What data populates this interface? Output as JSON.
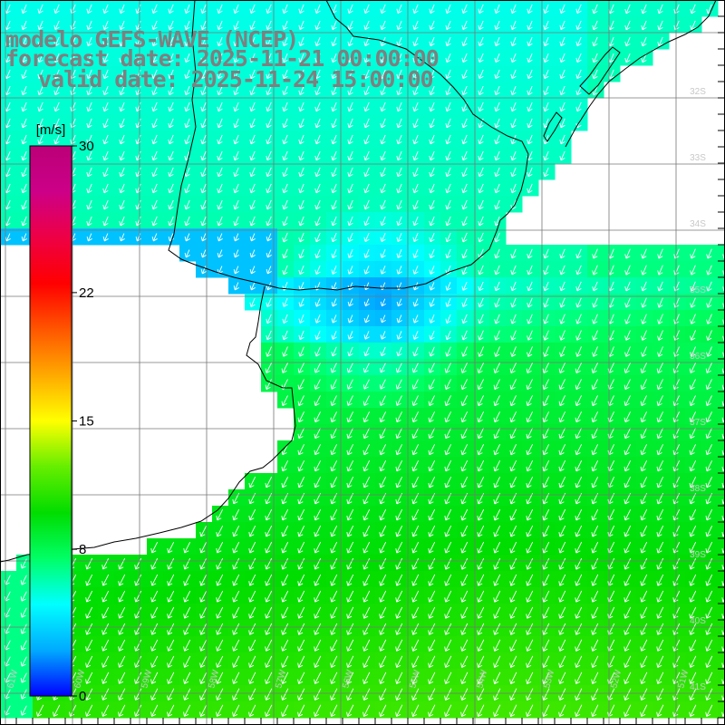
{
  "header": {
    "line1": "modelo GEFS-WAVE (NCEP)",
    "line2": "forecast date: 2025-11-21 00:00:00",
    "line3": "valid date: 2025-11-24 15:00:00"
  },
  "colorbar": {
    "unit": "[m/s]",
    "range": [
      0,
      30
    ],
    "ticks": [
      {
        "value": 30,
        "label": "30"
      },
      {
        "value": 22,
        "label": "22"
      },
      {
        "value": 15,
        "label": "15"
      },
      {
        "value": 8,
        "label": "8"
      },
      {
        "value": 0,
        "label": "0"
      }
    ],
    "stops": [
      "#0000ff",
      "#00aaff",
      "#00ffff",
      "#00ff66",
      "#00dd00",
      "#66ee00",
      "#ffff00",
      "#ffaa00",
      "#ff5500",
      "#ff0000",
      "#ee0044",
      "#cc0088",
      "#bb0077"
    ]
  },
  "lat_labels": [
    "32S",
    "33S",
    "34S",
    "35S",
    "36S",
    "37S",
    "38S",
    "39S",
    "40S",
    "41S"
  ],
  "lon_labels": [
    "61W",
    "60W",
    "59W",
    "58W",
    "57W",
    "56W",
    "55W",
    "54W",
    "53W",
    "52W",
    "51W"
  ],
  "colors": {
    "land": "#ffffff",
    "grid": "#777777",
    "coast": "#000000",
    "arrow": "#ffffff"
  }
}
